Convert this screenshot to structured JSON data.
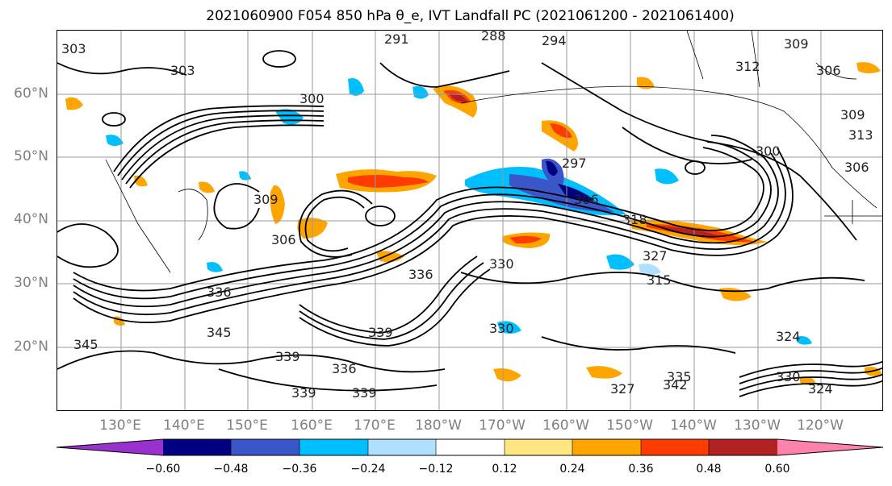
{
  "title": "2021060900 F054 850 hPa θ_e, IVT Landfall PC (2021061200 - 2021061400)",
  "lat_labels": [
    "60°N",
    "50°N",
    "40°N",
    "30°N",
    "20°N"
  ],
  "lon_labels": [
    "130°E",
    "140°E",
    "150°E",
    "160°E",
    "170°E",
    "180°W",
    "170°W",
    "160°W",
    "150°W",
    "140°W",
    "130°W",
    "120°W"
  ],
  "colorbar": {
    "ticks": [
      "−0.60",
      "−0.48",
      "−0.36",
      "−0.24",
      "−0.12",
      "0.12",
      "0.24",
      "0.36",
      "0.48",
      "0.60"
    ],
    "colors": [
      "#9932cc",
      "#000080",
      "#3a56c8",
      "#00bfff",
      "#b0e0ff",
      "#ffffff",
      "#ffe680",
      "#ffa500",
      "#ff3c00",
      "#b22222",
      "#ff82aa"
    ]
  },
  "contour_labels": [
    "303",
    "291",
    "288",
    "294",
    "303",
    "309",
    "306",
    "312",
    "300",
    "309",
    "313",
    "306",
    "300",
    "297",
    "306",
    "318",
    "327",
    "315",
    "330",
    "336",
    "336",
    "309",
    "306",
    "339",
    "345",
    "345",
    "330",
    "339",
    "336",
    "339",
    "324",
    "327",
    "342",
    "324",
    "335",
    "330",
    "339"
  ]
}
